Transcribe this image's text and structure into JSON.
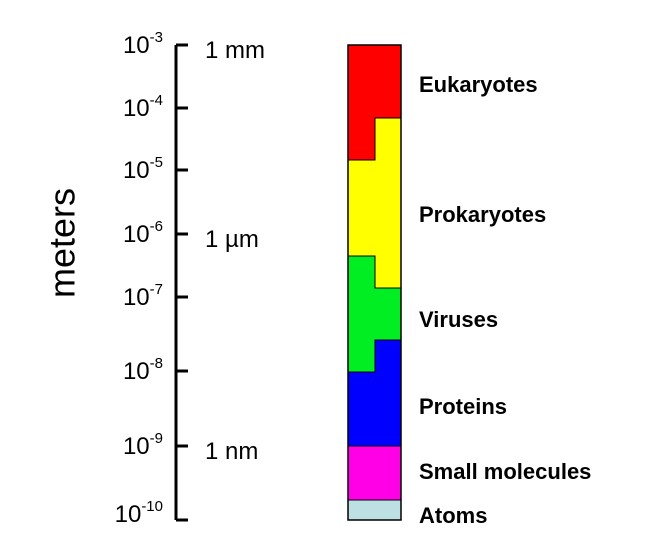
{
  "axis": {
    "title": "meters",
    "ticks": [
      {
        "base": "10",
        "exp": "-3",
        "unit": "1 mm"
      },
      {
        "base": "10",
        "exp": "-4",
        "unit": ""
      },
      {
        "base": "10",
        "exp": "-5",
        "unit": ""
      },
      {
        "base": "10",
        "exp": "-6",
        "unit": "1 µm"
      },
      {
        "base": "10",
        "exp": "-7",
        "unit": ""
      },
      {
        "base": "10",
        "exp": "-8",
        "unit": ""
      },
      {
        "base": "10",
        "exp": "-9",
        "unit": "1 nm"
      },
      {
        "base": "10",
        "exp": "-10",
        "unit": ""
      }
    ]
  },
  "categories": [
    {
      "name": "Eukaryotes",
      "color": "#ff0000"
    },
    {
      "name": "Prokaryotes",
      "color": "#ffff00"
    },
    {
      "name": "Viruses",
      "color": "#00ee22"
    },
    {
      "name": "Proteins",
      "color": "#0000ff"
    },
    {
      "name": "Small molecules",
      "color": "#ff00e6"
    },
    {
      "name": "Atoms",
      "color": "#bde0e3"
    }
  ],
  "outline_color": "#000000"
}
